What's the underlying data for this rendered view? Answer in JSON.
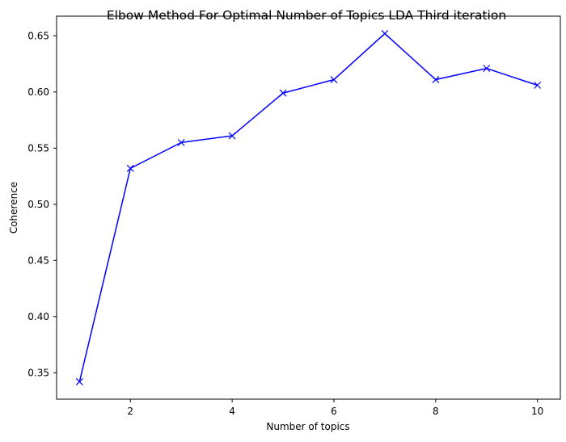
{
  "chart_data": {
    "type": "line",
    "title": "Elbow Method For Optimal Number of Topics LDA Third iteration",
    "xlabel": "Number of topics",
    "ylabel": "Coherence",
    "x": [
      1,
      2,
      3,
      4,
      5,
      6,
      7,
      8,
      9,
      10
    ],
    "series": [
      {
        "values": [
          0.342,
          0.532,
          0.555,
          0.561,
          0.599,
          0.611,
          0.652,
          0.611,
          0.621,
          0.606
        ],
        "color": "#0000ff",
        "marker": "x"
      }
    ],
    "xlim": [
      0.55,
      10.45
    ],
    "ylim": [
      0.3265,
      0.6675
    ],
    "xticks": [
      2,
      4,
      6,
      8,
      10
    ],
    "yticks": [
      0.35,
      0.4,
      0.45,
      0.5,
      0.55,
      0.6,
      0.65
    ],
    "xtick_labels": [
      "2",
      "4",
      "6",
      "8",
      "10"
    ],
    "ytick_labels": [
      "0.35",
      "0.40",
      "0.45",
      "0.50",
      "0.55",
      "0.60",
      "0.65"
    ],
    "grid": false,
    "legend": "none"
  }
}
